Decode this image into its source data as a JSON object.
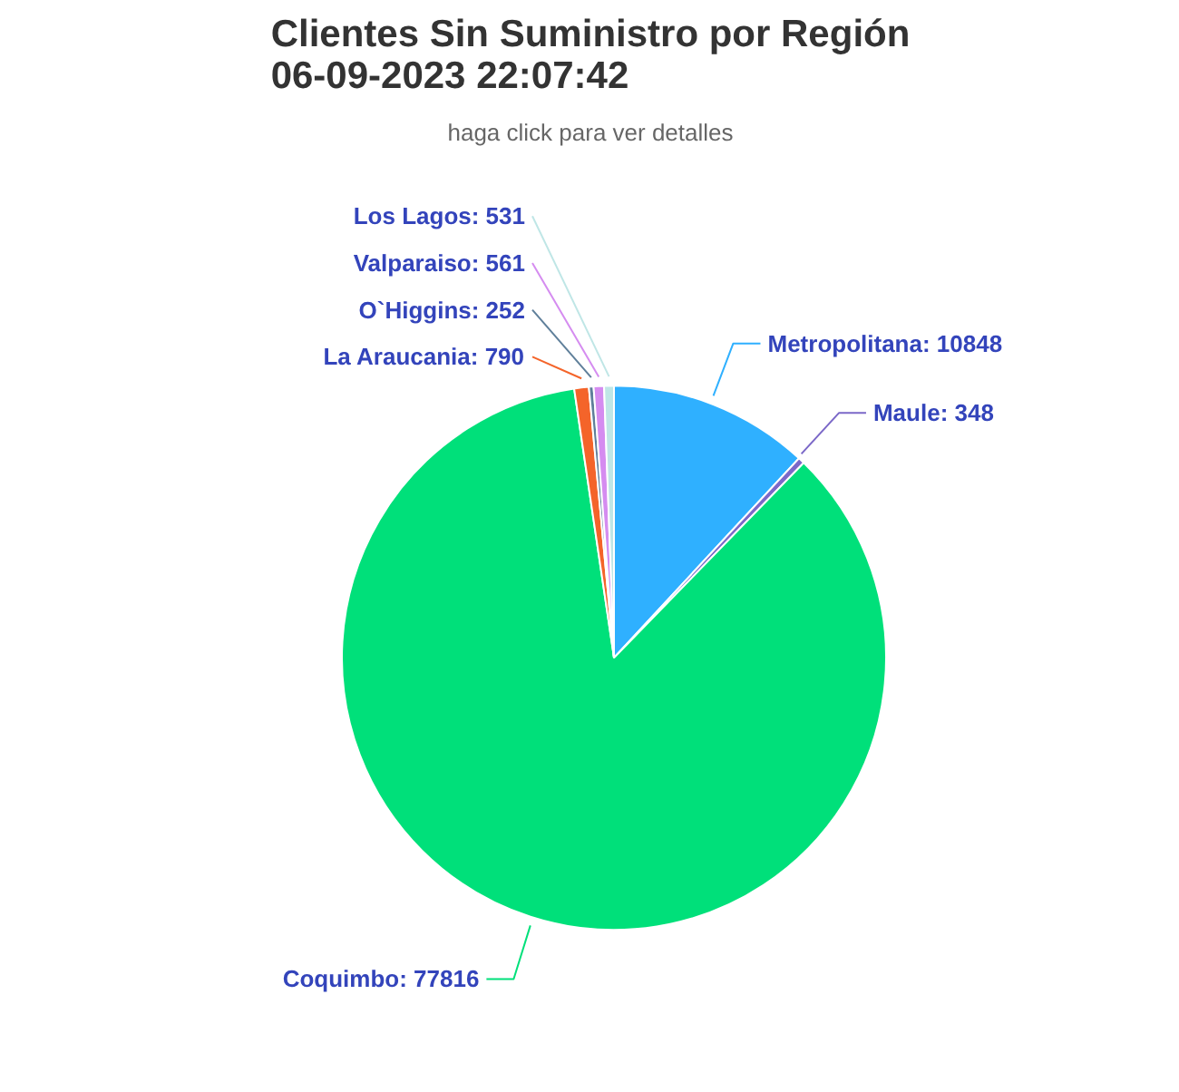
{
  "chart_data": {
    "type": "pie",
    "title": "Clientes Sin Suministro por Región\n06-09-2023 22:07:42",
    "subtitle": "haga click para ver detalles",
    "categories": [
      "Metropolitana: 10848",
      "Maule: 348",
      "Coquimbo: 77816",
      "La Araucania: 790",
      "O`Higgins: 252",
      "Valparaiso: 561",
      "Los Lagos: 531"
    ],
    "values": [
      10848,
      348,
      77816,
      790,
      252,
      561,
      531
    ],
    "colors": [
      "#2fb0ff",
      "#7b68c8",
      "#00e07a",
      "#f4642a",
      "#5f7f9a",
      "#d58cf0",
      "#bfe6e6"
    ]
  }
}
